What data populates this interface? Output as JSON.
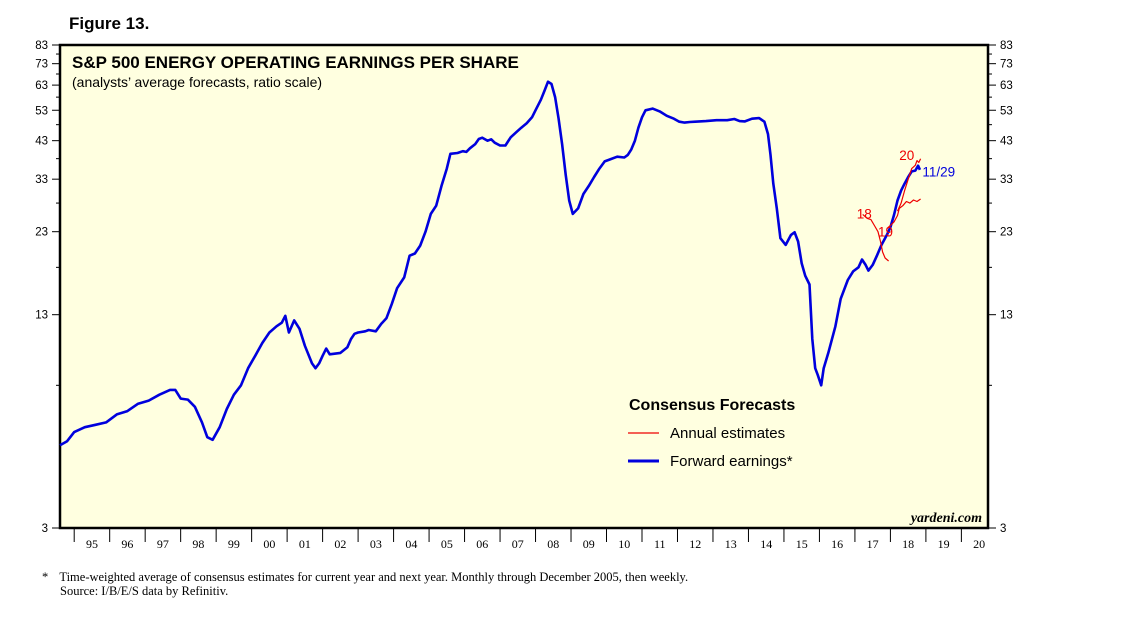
{
  "figure_label": "Figure 13.",
  "footnote_marker": "*",
  "footnote": "Time-weighted average of consensus estimates for current year and next year. Monthly through December 2005, then weekly.",
  "source": "Source: I/B/E/S data by Refinitiv.",
  "watermark": "yardeni.com",
  "colors": {
    "plot_bg": "#ffffe0",
    "forward": "#0000dd",
    "annual": "#ee0000",
    "frame": "#000000"
  },
  "chart_data": {
    "type": "line",
    "scale": "log",
    "title": "S&P 500 ENERGY OPERATING EARNINGS PER SHARE",
    "subtitle": "(analysts’ average forecasts, ratio scale)",
    "ylim": [
      3,
      83
    ],
    "xlim": [
      1994.6,
      2020.75
    ],
    "y_ticks": [
      "3",
      "13",
      "23",
      "33",
      "43",
      "53",
      "63",
      "73",
      "83"
    ],
    "x_ticks": [
      "95",
      "96",
      "97",
      "98",
      "99",
      "00",
      "01",
      "02",
      "03",
      "04",
      "05",
      "06",
      "07",
      "08",
      "09",
      "10",
      "11",
      "12",
      "13",
      "14",
      "15",
      "16",
      "17",
      "18",
      "19",
      "20"
    ],
    "legend": {
      "title": "Consensus Forecasts",
      "items": [
        {
          "label": "Annual estimates",
          "series": "annual"
        },
        {
          "label": "Forward earnings*",
          "series": "forward"
        }
      ]
    },
    "annotations": [
      {
        "text": "18",
        "x": 2017.05,
        "y": 25.9
      },
      {
        "text": "19",
        "x": 2017.65,
        "y": 22.9
      },
      {
        "text": "20",
        "x": 2018.25,
        "y": 38.7
      },
      {
        "text": "11/29",
        "x": 2018.9,
        "y": 34.6
      }
    ],
    "series": [
      {
        "name": "Forward earnings*",
        "id": "forward",
        "points": [
          [
            1994.6,
            5.3
          ],
          [
            1994.8,
            5.45
          ],
          [
            1995.0,
            5.8
          ],
          [
            1995.3,
            6.0
          ],
          [
            1995.6,
            6.1
          ],
          [
            1995.9,
            6.2
          ],
          [
            1996.2,
            6.55
          ],
          [
            1996.5,
            6.7
          ],
          [
            1996.8,
            7.05
          ],
          [
            1997.1,
            7.2
          ],
          [
            1997.4,
            7.5
          ],
          [
            1997.7,
            7.75
          ],
          [
            1997.85,
            7.75
          ],
          [
            1998.0,
            7.3
          ],
          [
            1998.2,
            7.25
          ],
          [
            1998.4,
            6.9
          ],
          [
            1998.6,
            6.2
          ],
          [
            1998.75,
            5.6
          ],
          [
            1998.9,
            5.5
          ],
          [
            1999.1,
            6.0
          ],
          [
            1999.3,
            6.8
          ],
          [
            1999.5,
            7.5
          ],
          [
            1999.7,
            8.0
          ],
          [
            1999.9,
            9.0
          ],
          [
            2000.1,
            9.8
          ],
          [
            2000.3,
            10.7
          ],
          [
            2000.5,
            11.5
          ],
          [
            2000.7,
            12.0
          ],
          [
            2000.85,
            12.3
          ],
          [
            2000.95,
            12.9
          ],
          [
            2001.05,
            11.5
          ],
          [
            2001.2,
            12.5
          ],
          [
            2001.35,
            11.8
          ],
          [
            2001.5,
            10.5
          ],
          [
            2001.7,
            9.3
          ],
          [
            2001.8,
            9.0
          ],
          [
            2001.9,
            9.3
          ],
          [
            2002.0,
            9.8
          ],
          [
            2002.1,
            10.3
          ],
          [
            2002.2,
            9.9
          ],
          [
            2002.5,
            10.0
          ],
          [
            2002.7,
            10.4
          ],
          [
            2002.8,
            11.0
          ],
          [
            2002.9,
            11.4
          ],
          [
            2003.0,
            11.5
          ],
          [
            2003.2,
            11.6
          ],
          [
            2003.3,
            11.7
          ],
          [
            2003.5,
            11.6
          ],
          [
            2003.65,
            12.2
          ],
          [
            2003.8,
            12.7
          ],
          [
            2003.95,
            14.0
          ],
          [
            2004.1,
            15.6
          ],
          [
            2004.3,
            16.8
          ],
          [
            2004.45,
            19.5
          ],
          [
            2004.6,
            19.8
          ],
          [
            2004.75,
            20.9
          ],
          [
            2004.9,
            23.0
          ],
          [
            2005.05,
            26.0
          ],
          [
            2005.2,
            27.5
          ],
          [
            2005.35,
            31.5
          ],
          [
            2005.5,
            35.5
          ],
          [
            2005.6,
            39.3
          ],
          [
            2005.8,
            39.5
          ],
          [
            2005.95,
            40.0
          ],
          [
            2006.05,
            39.8
          ],
          [
            2006.15,
            40.8
          ],
          [
            2006.3,
            42.0
          ],
          [
            2006.4,
            43.5
          ],
          [
            2006.5,
            43.9
          ],
          [
            2006.65,
            43.0
          ],
          [
            2006.75,
            43.4
          ],
          [
            2006.85,
            42.4
          ],
          [
            2007.0,
            41.6
          ],
          [
            2007.15,
            41.6
          ],
          [
            2007.3,
            44.0
          ],
          [
            2007.45,
            45.5
          ],
          [
            2007.6,
            47.0
          ],
          [
            2007.75,
            48.5
          ],
          [
            2007.9,
            50.5
          ],
          [
            2008.0,
            53.0
          ],
          [
            2008.15,
            57.0
          ],
          [
            2008.25,
            60.5
          ],
          [
            2008.35,
            64.5
          ],
          [
            2008.45,
            63.5
          ],
          [
            2008.55,
            58.0
          ],
          [
            2008.65,
            50.0
          ],
          [
            2008.75,
            42.0
          ],
          [
            2008.85,
            34.0
          ],
          [
            2008.95,
            28.5
          ],
          [
            2009.05,
            26.0
          ],
          [
            2009.2,
            27.0
          ],
          [
            2009.35,
            29.8
          ],
          [
            2009.5,
            31.5
          ],
          [
            2009.65,
            33.5
          ],
          [
            2009.8,
            35.5
          ],
          [
            2009.95,
            37.3
          ],
          [
            2010.1,
            37.8
          ],
          [
            2010.3,
            38.5
          ],
          [
            2010.5,
            38.3
          ],
          [
            2010.6,
            39.0
          ],
          [
            2010.7,
            40.5
          ],
          [
            2010.8,
            43.0
          ],
          [
            2010.9,
            47.0
          ],
          [
            2011.0,
            50.5
          ],
          [
            2011.1,
            53.0
          ],
          [
            2011.3,
            53.6
          ],
          [
            2011.5,
            52.6
          ],
          [
            2011.7,
            51.0
          ],
          [
            2011.9,
            50.0
          ],
          [
            2012.05,
            49.0
          ],
          [
            2012.2,
            48.7
          ],
          [
            2012.35,
            48.9
          ],
          [
            2012.5,
            49.0
          ],
          [
            2012.8,
            49.2
          ],
          [
            2013.1,
            49.5
          ],
          [
            2013.4,
            49.5
          ],
          [
            2013.6,
            49.9
          ],
          [
            2013.75,
            49.2
          ],
          [
            2013.9,
            49.1
          ],
          [
            2014.1,
            50.0
          ],
          [
            2014.3,
            50.2
          ],
          [
            2014.45,
            49.0
          ],
          [
            2014.55,
            45.0
          ],
          [
            2014.62,
            39.0
          ],
          [
            2014.7,
            32.0
          ],
          [
            2014.8,
            27.0
          ],
          [
            2014.9,
            22.0
          ],
          [
            2015.05,
            21.0
          ],
          [
            2015.2,
            22.5
          ],
          [
            2015.3,
            22.9
          ],
          [
            2015.4,
            21.5
          ],
          [
            2015.5,
            18.5
          ],
          [
            2015.6,
            17.0
          ],
          [
            2015.72,
            16.0
          ],
          [
            2015.8,
            11.0
          ],
          [
            2015.88,
            9.0
          ],
          [
            2015.95,
            8.6
          ],
          [
            2016.05,
            8.0
          ],
          [
            2016.12,
            9.0
          ],
          [
            2016.25,
            10.0
          ],
          [
            2016.45,
            12.0
          ],
          [
            2016.6,
            14.5
          ],
          [
            2016.8,
            16.5
          ],
          [
            2016.95,
            17.5
          ],
          [
            2017.1,
            18.0
          ],
          [
            2017.2,
            19.0
          ],
          [
            2017.3,
            18.3
          ],
          [
            2017.38,
            17.6
          ],
          [
            2017.5,
            18.3
          ],
          [
            2017.62,
            19.5
          ],
          [
            2017.75,
            21.0
          ],
          [
            2017.9,
            22.5
          ],
          [
            2018.0,
            23.7
          ],
          [
            2018.1,
            25.8
          ],
          [
            2018.2,
            28.5
          ],
          [
            2018.3,
            30.5
          ],
          [
            2018.4,
            32.0
          ],
          [
            2018.5,
            33.5
          ],
          [
            2018.6,
            34.8
          ],
          [
            2018.7,
            35.0
          ],
          [
            2018.78,
            36.2
          ],
          [
            2018.83,
            35.2
          ]
        ]
      },
      {
        "name": "Annual estimates (18)",
        "id": "annual",
        "points": [
          [
            2017.22,
            25.9
          ],
          [
            2017.35,
            25.2
          ],
          [
            2017.45,
            25.0
          ],
          [
            2017.55,
            24.0
          ],
          [
            2017.65,
            23.0
          ],
          [
            2017.72,
            21.5
          ],
          [
            2017.78,
            20.0
          ],
          [
            2017.85,
            19.2
          ],
          [
            2017.95,
            18.8
          ]
        ]
      },
      {
        "name": "Annual estimates (19)",
        "id": "annual",
        "points": [
          [
            2017.9,
            23.5
          ],
          [
            2018.0,
            24.0
          ],
          [
            2018.1,
            24.6
          ],
          [
            2018.2,
            25.7
          ],
          [
            2018.25,
            27.0
          ],
          [
            2018.35,
            27.5
          ],
          [
            2018.45,
            28.3
          ],
          [
            2018.55,
            28.0
          ],
          [
            2018.65,
            28.6
          ],
          [
            2018.75,
            28.3
          ],
          [
            2018.85,
            28.8
          ]
        ]
      },
      {
        "name": "Annual estimates (20)",
        "id": "annual",
        "points": [
          [
            2018.2,
            26.5
          ],
          [
            2018.3,
            28.0
          ],
          [
            2018.4,
            30.5
          ],
          [
            2018.5,
            33.0
          ],
          [
            2018.6,
            35.5
          ],
          [
            2018.7,
            36.3
          ],
          [
            2018.75,
            37.5
          ],
          [
            2018.8,
            37.0
          ],
          [
            2018.85,
            38.0
          ]
        ]
      }
    ]
  }
}
